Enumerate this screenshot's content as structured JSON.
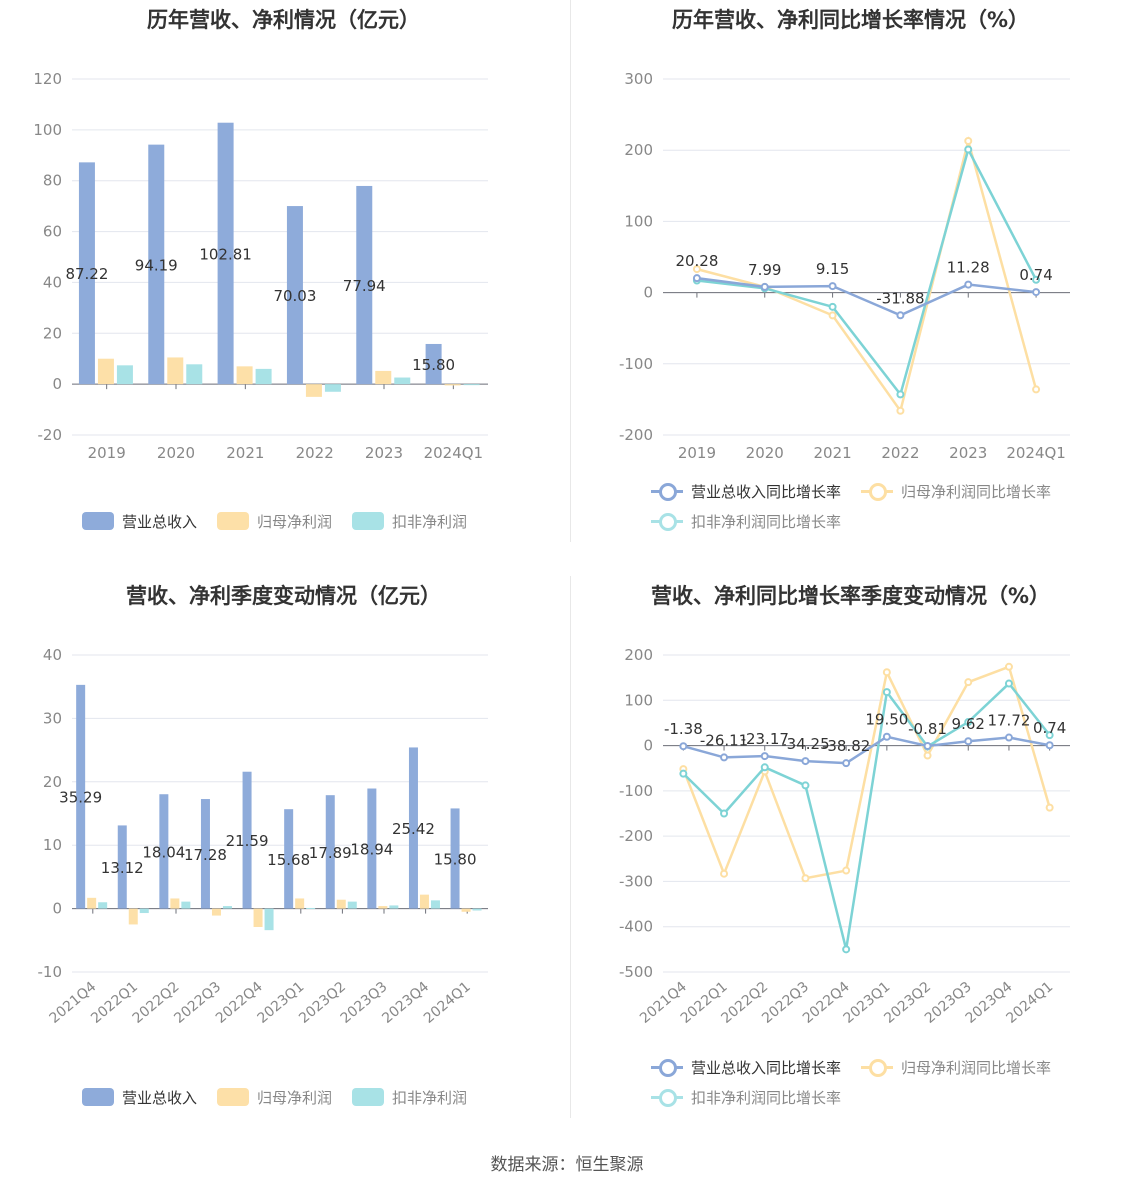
{
  "source_note": "数据来源：恒生聚源",
  "colors": {
    "revenue": "#8eabda",
    "profit": "#fde0a8",
    "adj_profit": "#a8e2e6",
    "revenue_line": "#8aa7d8",
    "profit_line": "#fddfa3",
    "adj_line": "#7dd3d5",
    "grid": "#e3e6ee",
    "axis_text": "#888888",
    "label_text": "#333333"
  },
  "chart_data": [
    {
      "type": "bar",
      "title": "历年营收、净利情况（亿元）",
      "categories": [
        "2019",
        "2020",
        "2021",
        "2022",
        "2023",
        "2024Q1"
      ],
      "ylim": [
        -20,
        120
      ],
      "yticks": [
        "-20",
        "0",
        "20",
        "40",
        "60",
        "80",
        "100",
        "120"
      ],
      "series": [
        {
          "name": "营业总收入",
          "values": [
            87.22,
            94.19,
            102.81,
            70.03,
            77.94,
            15.8
          ],
          "labels": [
            "87.22",
            "94.19",
            "102.81",
            "70.03",
            "77.94",
            "15.80"
          ]
        },
        {
          "name": "归母净利润",
          "values": [
            10.0,
            10.5,
            7.0,
            -5.0,
            5.2,
            -0.5
          ]
        },
        {
          "name": "扣非净利润",
          "values": [
            7.4,
            7.8,
            6.0,
            -3.0,
            2.6,
            -0.3
          ]
        }
      ],
      "legend": "bottom"
    },
    {
      "type": "line",
      "title": "历年营收、净利同比增长率情况（%）",
      "categories": [
        "2019",
        "2020",
        "2021",
        "2022",
        "2023",
        "2024Q1"
      ],
      "ylim": [
        -200,
        300
      ],
      "yticks": [
        "-200",
        "-100",
        "0",
        "100",
        "200",
        "300"
      ],
      "series": [
        {
          "name": "营业总收入同比增长率",
          "values": [
            20.28,
            7.99,
            9.15,
            -31.88,
            11.28,
            0.74
          ],
          "labels": [
            "20.28",
            "7.99",
            "9.15",
            "-31.88",
            "11.28",
            "0.74"
          ]
        },
        {
          "name": "归母净利润同比增长率",
          "values": [
            33,
            8,
            -32,
            -166,
            213,
            -136
          ]
        },
        {
          "name": "扣非净利润同比增长率",
          "values": [
            17,
            6,
            -20,
            -143,
            201,
            18
          ]
        }
      ],
      "legend": "bottom"
    },
    {
      "type": "bar",
      "title": "营收、净利季度变动情况（亿元）",
      "categories": [
        "2021Q4",
        "2022Q1",
        "2022Q2",
        "2022Q3",
        "2022Q4",
        "2023Q1",
        "2023Q2",
        "2023Q3",
        "2023Q4",
        "2024Q1"
      ],
      "ylim": [
        -10,
        40
      ],
      "yticks": [
        "-10",
        "0",
        "10",
        "20",
        "30",
        "40"
      ],
      "series": [
        {
          "name": "营业总收入",
          "values": [
            35.29,
            13.12,
            18.04,
            17.28,
            21.59,
            15.68,
            17.89,
            18.94,
            25.42,
            15.8
          ],
          "labels": [
            "35.29",
            "13.12",
            "18.04",
            "17.28",
            "21.59",
            "15.68",
            "17.89",
            "18.94",
            "25.42",
            "15.80"
          ]
        },
        {
          "name": "归母净利润",
          "values": [
            1.7,
            -2.5,
            1.6,
            -1.1,
            -2.9,
            1.6,
            1.4,
            0.4,
            2.2,
            -0.5
          ]
        },
        {
          "name": "扣非净利润",
          "values": [
            1.0,
            -0.7,
            1.1,
            0.4,
            -3.4,
            0.1,
            1.1,
            0.5,
            1.3,
            -0.3
          ]
        }
      ],
      "legend": "bottom"
    },
    {
      "type": "line",
      "title": "营收、净利同比增长率季度变动情况（%）",
      "categories": [
        "2021Q4",
        "2022Q1",
        "2022Q2",
        "2022Q3",
        "2022Q4",
        "2023Q1",
        "2023Q2",
        "2023Q3",
        "2023Q4",
        "2024Q1"
      ],
      "ylim": [
        -500,
        200
      ],
      "yticks": [
        "-500",
        "-400",
        "-300",
        "-200",
        "-100",
        "0",
        "100",
        "200"
      ],
      "series": [
        {
          "name": "营业总收入同比增长率",
          "values": [
            -1.38,
            -26.11,
            -23.17,
            -34.25,
            -38.82,
            19.5,
            -0.81,
            9.62,
            17.72,
            0.74
          ],
          "labels": [
            "-1.38",
            "-26.11",
            "-23.17",
            "-34.25",
            "-38.82",
            "19.50",
            "-0.81",
            "9.62",
            "17.72",
            "0.74"
          ]
        },
        {
          "name": "归母净利润同比增长率",
          "values": [
            -52,
            -283,
            -57,
            -293,
            -276,
            162,
            -22,
            140,
            174,
            -137
          ]
        },
        {
          "name": "扣非净利润同比增长率",
          "values": [
            -62,
            -150,
            -48,
            -88,
            -450,
            118,
            -2,
            52,
            137,
            23
          ]
        }
      ],
      "legend": "bottom"
    }
  ]
}
